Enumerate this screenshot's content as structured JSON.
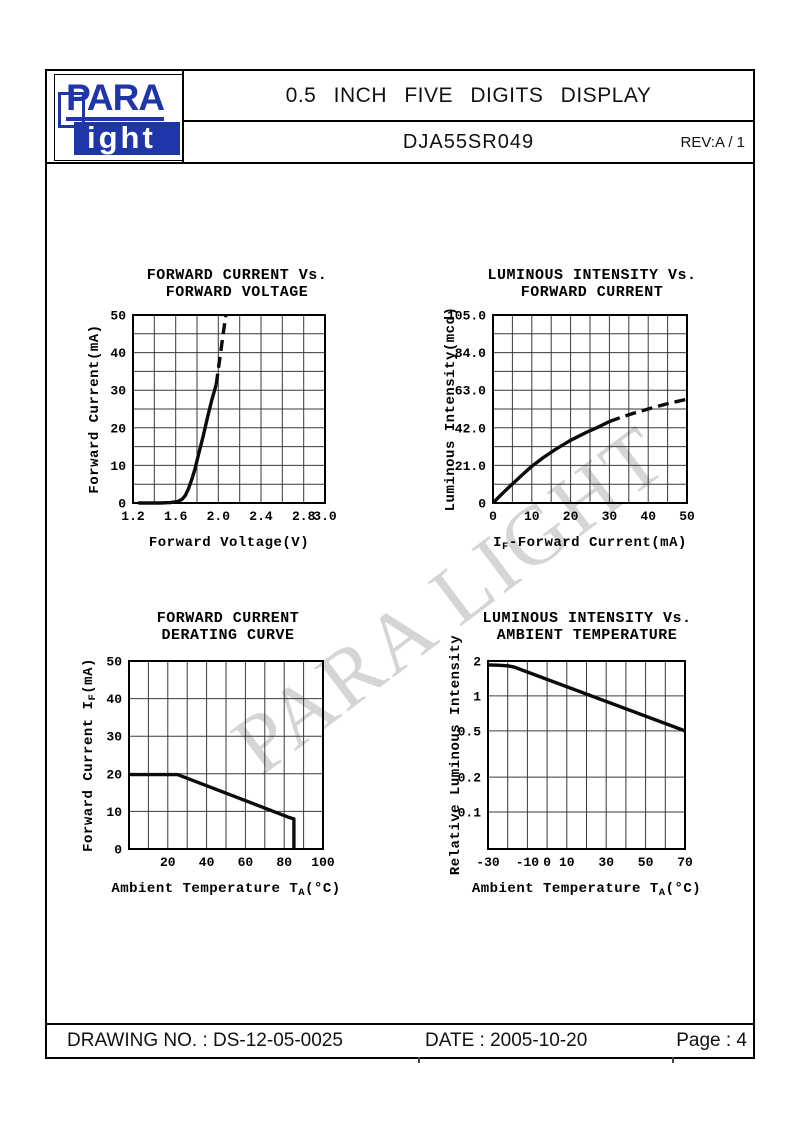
{
  "header": {
    "logo_top": "PARA",
    "logo_bottom": "ight",
    "brand_blue": "#1f36a8",
    "title": "0.5  INCH  FIVE  DIGITS  DISPLAY",
    "part_number": "DJA55SR049",
    "revision": "REV:A / 1"
  },
  "watermark": {
    "text": "PARA LIGHT",
    "color": "#d5d5d5"
  },
  "footer": {
    "drawing_no": "DRAWING NO. : DS-12-05-0025",
    "date": "DATE : 2005-10-20",
    "page": "Page : 4"
  },
  "chart_data": [
    {
      "type": "line",
      "title_lines": [
        "FORWARD CURRENT Vs.",
        "FORWARD VOLTAGE"
      ],
      "xlabel_parts": [
        {
          "t": "Forward Voltage(V)"
        }
      ],
      "ylabel_parts": [
        {
          "t": "Forward Current(mA)"
        }
      ],
      "x_range": [
        1.2,
        3.0
      ],
      "y_range": [
        0,
        50
      ],
      "y_scale": "linear",
      "grid": true,
      "x_gridlines": [
        1.2,
        1.4,
        1.6,
        1.8,
        2.0,
        2.2,
        2.4,
        2.6,
        2.8,
        3.0
      ],
      "y_gridlines": [
        0,
        5,
        10,
        15,
        20,
        25,
        30,
        35,
        40,
        45,
        50
      ],
      "x_ticks": [
        {
          "v": 1.2,
          "label": "1.2"
        },
        {
          "v": 1.6,
          "label": "1.6"
        },
        {
          "v": 2.0,
          "label": "2.0"
        },
        {
          "v": 2.4,
          "label": "2.4"
        },
        {
          "v": 2.8,
          "label": "2.8"
        },
        {
          "v": 3.0,
          "label": "3.0"
        }
      ],
      "y_ticks": [
        {
          "v": 0,
          "label": "0"
        },
        {
          "v": 10,
          "label": "10"
        },
        {
          "v": 20,
          "label": "20"
        },
        {
          "v": 30,
          "label": "30"
        },
        {
          "v": 40,
          "label": "40"
        },
        {
          "v": 50,
          "label": "50"
        }
      ],
      "series": [
        {
          "name": "typical",
          "style": "solid",
          "points": [
            [
              1.25,
              0
            ],
            [
              1.45,
              0
            ],
            [
              1.55,
              0.1
            ],
            [
              1.62,
              0.4
            ],
            [
              1.66,
              1
            ],
            [
              1.69,
              2
            ],
            [
              1.72,
              3.8
            ],
            [
              1.75,
              6.2
            ],
            [
              1.78,
              9
            ],
            [
              1.82,
              13.5
            ],
            [
              1.86,
              18
            ],
            [
              1.9,
              23
            ],
            [
              1.94,
              27.5
            ],
            [
              1.98,
              31.5
            ]
          ]
        },
        {
          "name": "extrapolated",
          "style": "dashed",
          "points": [
            [
              1.98,
              31.5
            ],
            [
              2.07,
              50
            ]
          ]
        }
      ]
    },
    {
      "type": "line",
      "title_lines": [
        "LUMINOUS INTENSITY Vs.",
        "FORWARD CURRENT"
      ],
      "xlabel_parts": [
        {
          "t": "I"
        },
        {
          "t": "F",
          "sub": true
        },
        {
          "t": "-Forward Current(mA)"
        }
      ],
      "ylabel_parts": [
        {
          "t": "Luminous Intensity(mcd)"
        }
      ],
      "x_range": [
        0,
        50
      ],
      "y_range": [
        0,
        105
      ],
      "y_scale": "linear",
      "grid": true,
      "x_gridlines": [
        0,
        5,
        10,
        15,
        20,
        25,
        30,
        35,
        40,
        45,
        50
      ],
      "y_gridlines": [
        0,
        10.5,
        21,
        31.5,
        42,
        52.5,
        63,
        73.5,
        84,
        94.5,
        105
      ],
      "x_ticks": [
        {
          "v": 0,
          "label": "0"
        },
        {
          "v": 10,
          "label": "10"
        },
        {
          "v": 20,
          "label": "20"
        },
        {
          "v": 30,
          "label": "30"
        },
        {
          "v": 40,
          "label": "40"
        },
        {
          "v": 50,
          "label": "50"
        }
      ],
      "y_ticks": [
        {
          "v": 0,
          "label": "0"
        },
        {
          "v": 21,
          "label": "21.0"
        },
        {
          "v": 42,
          "label": "42.0"
        },
        {
          "v": 63,
          "label": "63.0"
        },
        {
          "v": 84,
          "label": "84.0"
        },
        {
          "v": 105,
          "label": "105.0"
        }
      ],
      "series": [
        {
          "name": "typical",
          "style": "solid",
          "points": [
            [
              0,
              0
            ],
            [
              2,
              4.4
            ],
            [
              4,
              8.6
            ],
            [
              6,
              12.6
            ],
            [
              8,
              16.6
            ],
            [
              10,
              20.5
            ],
            [
              13,
              25.4
            ],
            [
              16,
              29.8
            ],
            [
              20,
              35
            ],
            [
              24,
              39.4
            ],
            [
              27,
              42.3
            ],
            [
              30,
              45.5
            ]
          ]
        },
        {
          "name": "extrapolated",
          "style": "dashed",
          "points": [
            [
              30,
              45.5
            ],
            [
              33,
              47.8
            ],
            [
              36,
              50
            ],
            [
              40,
              52.5
            ],
            [
              45,
              55.5
            ],
            [
              50,
              58
            ]
          ]
        }
      ]
    },
    {
      "type": "line",
      "title_lines": [
        "FORWARD CURRENT",
        "DERATING CURVE"
      ],
      "xlabel_parts": [
        {
          "t": "Ambient Temperature T"
        },
        {
          "t": "A",
          "sub": true
        },
        {
          "t": "(°C)"
        }
      ],
      "ylabel_parts": [
        {
          "t": "Forward Current I"
        },
        {
          "t": "F",
          "sub": true
        },
        {
          "t": "(mA)"
        }
      ],
      "x_range": [
        0,
        100
      ],
      "y_range": [
        0,
        50
      ],
      "y_scale": "linear",
      "grid": true,
      "x_gridlines": [
        0,
        10,
        20,
        30,
        40,
        50,
        60,
        70,
        80,
        90,
        100
      ],
      "y_gridlines": [
        0,
        10,
        20,
        30,
        40,
        50
      ],
      "x_ticks": [
        {
          "v": 20,
          "label": "20"
        },
        {
          "v": 40,
          "label": "40"
        },
        {
          "v": 60,
          "label": "60"
        },
        {
          "v": 80,
          "label": "80"
        },
        {
          "v": 100,
          "label": "100"
        }
      ],
      "y_ticks": [
        {
          "v": 0,
          "label": "0"
        },
        {
          "v": 10,
          "label": "10"
        },
        {
          "v": 20,
          "label": "20"
        },
        {
          "v": 30,
          "label": "30"
        },
        {
          "v": 40,
          "label": "40"
        },
        {
          "v": 50,
          "label": "50"
        }
      ],
      "series": [
        {
          "name": "max forward current",
          "style": "solid",
          "points": [
            [
              0,
              19.8
            ],
            [
              25,
              19.8
            ],
            [
              83,
              8.3
            ],
            [
              85,
              8
            ],
            [
              85,
              0
            ]
          ]
        }
      ]
    },
    {
      "type": "line",
      "title_lines": [
        "LUMINOUS INTENSITY Vs.",
        "AMBIENT TEMPERATURE"
      ],
      "xlabel_parts": [
        {
          "t": "Ambient Temperature T"
        },
        {
          "t": "A",
          "sub": true
        },
        {
          "t": "(°C)"
        }
      ],
      "ylabel_parts": [
        {
          "t": "Relative Luminous Intensity"
        }
      ],
      "x_range": [
        -30,
        70
      ],
      "y_range": [
        0.048,
        2
      ],
      "y_scale": "log",
      "grid": true,
      "x_gridlines": [
        -30,
        -20,
        -10,
        0,
        10,
        20,
        30,
        40,
        50,
        60,
        70
      ],
      "y_gridlines": [
        2,
        1,
        0.5,
        0.2,
        0.1
      ],
      "x_ticks": [
        {
          "v": -30,
          "label": "-30"
        },
        {
          "v": -10,
          "label": "-10"
        },
        {
          "v": 0,
          "label": "0"
        },
        {
          "v": 10,
          "label": "10"
        },
        {
          "v": 30,
          "label": "30"
        },
        {
          "v": 50,
          "label": "50"
        },
        {
          "v": 70,
          "label": "70"
        }
      ],
      "y_ticks": [
        {
          "v": 2,
          "label": "2"
        },
        {
          "v": 1,
          "label": "1"
        },
        {
          "v": 0.5,
          "label": "0.5"
        },
        {
          "v": 0.2,
          "label": "0.2"
        },
        {
          "v": 0.1,
          "label": "0.1"
        }
      ],
      "series": [
        {
          "name": "relative intensity",
          "style": "solid",
          "points": [
            [
              -30,
              1.85
            ],
            [
              -25,
              1.84
            ],
            [
              -20,
              1.82
            ],
            [
              -17,
              1.78
            ],
            [
              70,
              0.5
            ]
          ]
        }
      ]
    }
  ]
}
